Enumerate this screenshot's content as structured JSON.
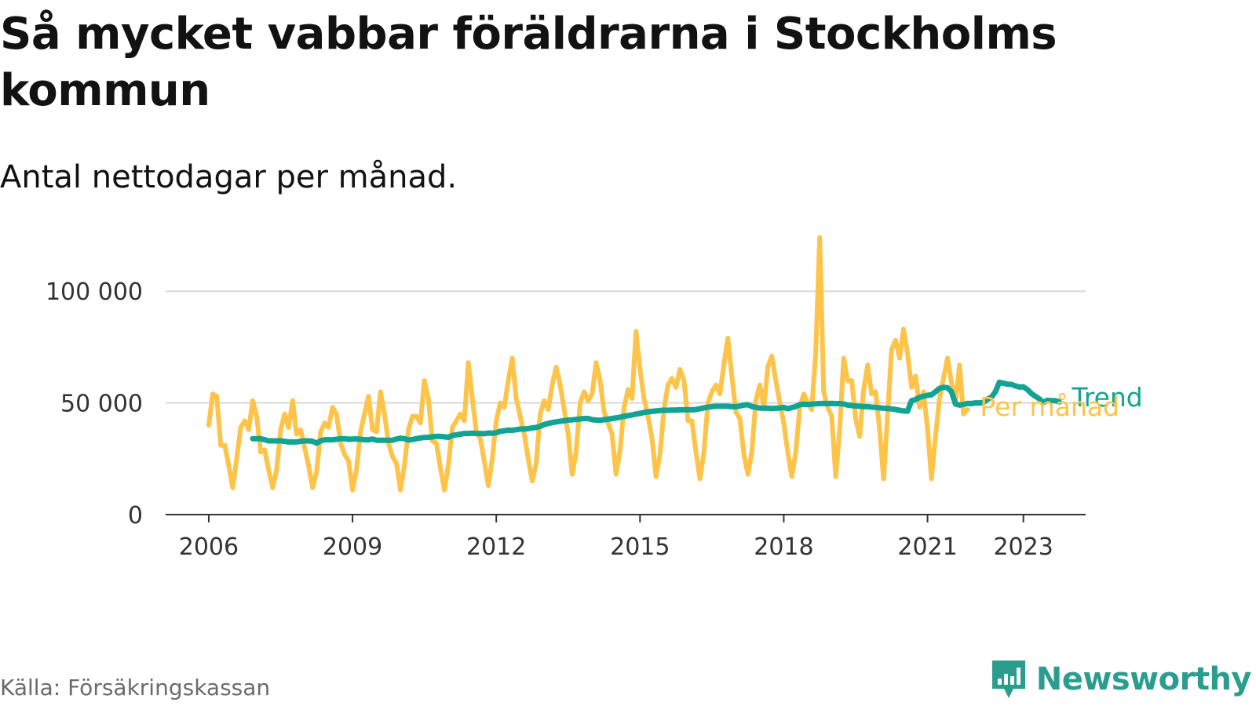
{
  "header": {
    "title": "Så mycket vabbar föräldrarna i Stockholms kommun",
    "subtitle": "Antal nettodagar per månad."
  },
  "footer": {
    "source": "Källa: Försäkringskassan",
    "brand": "Newsworthy"
  },
  "colors": {
    "per_month": "#FEC349",
    "trend": "#13A392",
    "grid": "#d9d9d9",
    "axis": "#333333",
    "brand": "#2a9d8f"
  },
  "chart_data": {
    "type": "line",
    "title": "Så mycket vabbar föräldrarna i Stockholms kommun",
    "subtitle": "Antal nettodagar per månad.",
    "x_ticks": [
      2006,
      2009,
      2012,
      2015,
      2018,
      2021,
      2023
    ],
    "y_ticks": [
      0,
      50000,
      100000
    ],
    "y_tick_labels": [
      "0",
      "50 000",
      "100 000"
    ],
    "ylim": [
      0,
      125000
    ],
    "xlim": [
      2005.1,
      2024.3
    ],
    "grid": "horizontal",
    "legend": "direct labels at line end",
    "series": [
      {
        "name": "Per månad",
        "start": "2006-01",
        "values": [
          40000,
          54000,
          53000,
          31000,
          31000,
          22000,
          12000,
          25000,
          39000,
          42000,
          38000,
          51000,
          44000,
          28000,
          29000,
          20000,
          12000,
          20000,
          38000,
          45000,
          39000,
          51000,
          36000,
          38000,
          30000,
          22000,
          12000,
          19000,
          37000,
          41000,
          39000,
          48000,
          45000,
          32000,
          27000,
          24000,
          11000,
          20000,
          37000,
          45000,
          53000,
          38000,
          37000,
          55000,
          45000,
          32000,
          26000,
          23000,
          11000,
          22000,
          38000,
          44000,
          44000,
          41000,
          60000,
          52000,
          33000,
          32000,
          21000,
          11000,
          22000,
          39000,
          42000,
          45000,
          42000,
          68000,
          52000,
          37000,
          34000,
          24000,
          13000,
          25000,
          42000,
          50000,
          48000,
          60000,
          70000,
          52000,
          44000,
          36000,
          25000,
          15000,
          23000,
          45000,
          51000,
          47000,
          58000,
          66000,
          58000,
          47000,
          36000,
          18000,
          28000,
          50000,
          55000,
          51000,
          54000,
          68000,
          60000,
          46000,
          41000,
          36000,
          18000,
          29000,
          48000,
          56000,
          52000,
          82000,
          65000,
          52000,
          44000,
          34000,
          17000,
          27000,
          47000,
          58000,
          61000,
          57000,
          65000,
          60000,
          42000,
          42000,
          28000,
          16000,
          28000,
          50000,
          55000,
          58000,
          54000,
          67000,
          79000,
          62000,
          46000,
          43000,
          27000,
          18000,
          28000,
          51000,
          58000,
          48000,
          66000,
          71000,
          60000,
          50000,
          41000,
          28000,
          17000,
          28000,
          48000,
          54000,
          50000,
          47000,
          72000,
          124000,
          55000,
          48000,
          44000,
          17000,
          38000,
          70000,
          60000,
          60000,
          43000,
          35000,
          56000,
          67000,
          54000,
          55000,
          38000,
          16000,
          45000,
          74000,
          78000,
          70000,
          83000,
          72000,
          57000,
          62000,
          48000,
          55000,
          38000,
          16000,
          35000,
          52000,
          61000,
          70000,
          59000,
          50000,
          67000,
          45000,
          47000
        ]
      },
      {
        "name": "Trend",
        "start": "2006-12",
        "values": [
          34000,
          34000,
          34000,
          33500,
          33000,
          33000,
          33000,
          33000,
          32800,
          32500,
          32500,
          32500,
          32800,
          33000,
          33000,
          32800,
          32000,
          33000,
          33500,
          33500,
          33500,
          33700,
          34000,
          34000,
          33700,
          33800,
          33900,
          33700,
          33500,
          33500,
          33800,
          33300,
          33300,
          33300,
          33300,
          33300,
          33800,
          34200,
          34000,
          33400,
          33600,
          34000,
          34300,
          34500,
          34600,
          34800,
          35000,
          35000,
          34800,
          34600,
          35400,
          35700,
          36000,
          36300,
          36300,
          36400,
          36300,
          36300,
          36200,
          36500,
          36400,
          36600,
          37300,
          37500,
          37800,
          37700,
          38000,
          38300,
          38300,
          38500,
          38800,
          39000,
          39500,
          40300,
          40800,
          41200,
          41500,
          41800,
          42000,
          42300,
          42400,
          42600,
          42800,
          43000,
          43000,
          42500,
          42300,
          42200,
          42500,
          42700,
          43000,
          43300,
          43600,
          44000,
          44300,
          44600,
          45000,
          45300,
          45700,
          46000,
          46200,
          46400,
          46600,
          46700,
          46700,
          46800,
          46800,
          46900,
          46900,
          46900,
          46900,
          47000,
          47400,
          47800,
          48100,
          48300,
          48500,
          48500,
          48500,
          48500,
          48300,
          48300,
          48600,
          49000,
          49200,
          48400,
          48000,
          47700,
          47600,
          47600,
          47500,
          47600,
          47700,
          48000,
          47400,
          47900,
          48400,
          49200,
          49400,
          49300,
          49400,
          49600,
          49700,
          49800,
          49700,
          49800,
          49700,
          49700,
          49500,
          49000,
          48800,
          48600,
          48500,
          48400,
          48300,
          48100,
          48000,
          47800,
          47600,
          47500,
          47300,
          47000,
          46700,
          46400,
          46300,
          51000,
          51500,
          52500,
          53000,
          53400,
          53600,
          55000,
          56500,
          57000,
          56800,
          55000,
          49500,
          49000,
          49300,
          49800,
          49700,
          50000,
          50000,
          50200,
          51600,
          52600,
          55000,
          59200,
          58800,
          58400,
          58300,
          57600,
          57100,
          57200,
          56000,
          54200,
          53000,
          51800,
          50100,
          51200,
          51000,
          51000,
          50500
        ]
      }
    ],
    "line_labels": [
      {
        "series": "Trend",
        "text": "Trend"
      },
      {
        "series": "Per månad",
        "text": "Per månad"
      }
    ]
  }
}
